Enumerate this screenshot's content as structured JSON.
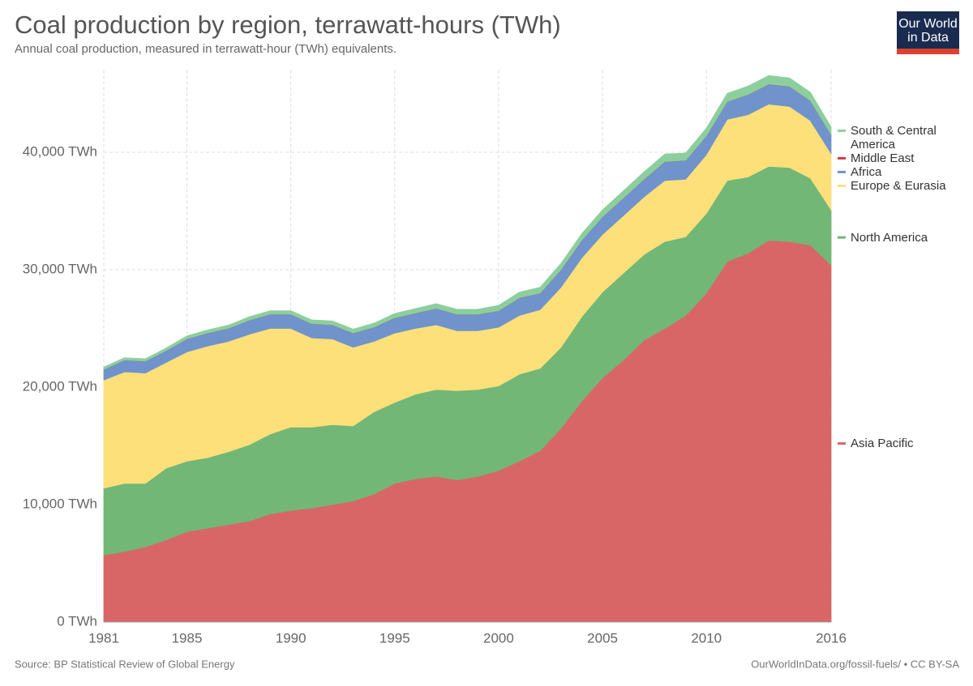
{
  "chart_data": {
    "type": "stacked-area",
    "title": "Coal production by region, terrawatt-hours (TWh)",
    "subtitle": "Annual coal production, measured in terrawatt-hour (TWh) equivalents.",
    "source": "Source: BP Statistical Review of Global Energy",
    "license": "OurWorldInData.org/fossil-fuels/ • CC BY-SA",
    "logo": [
      "Our World",
      "in Data"
    ],
    "x": [
      1981,
      1982,
      1983,
      1984,
      1985,
      1986,
      1987,
      1988,
      1989,
      1990,
      1991,
      1992,
      1993,
      1994,
      1995,
      1996,
      1997,
      1998,
      1999,
      2000,
      2001,
      2002,
      2003,
      2004,
      2005,
      2006,
      2007,
      2008,
      2009,
      2010,
      2011,
      2012,
      2013,
      2014,
      2015,
      2016
    ],
    "xlim": [
      1981,
      2016
    ],
    "xticks": [
      1981,
      1985,
      1990,
      1995,
      2000,
      2005,
      2010,
      2016
    ],
    "ylim": [
      0,
      47000
    ],
    "yticks": [
      {
        "value": 0,
        "label": "0 TWh"
      },
      {
        "value": 10000,
        "label": "10,000 TWh"
      },
      {
        "value": 20000,
        "label": "20,000 TWh"
      },
      {
        "value": 30000,
        "label": "30,000 TWh"
      },
      {
        "value": 40000,
        "label": "40,000 TWh"
      }
    ],
    "grid": true,
    "series": [
      {
        "name": "Asia Pacific",
        "color": "#d96666",
        "values": [
          5700,
          6000,
          6400,
          7000,
          7700,
          8000,
          8300,
          8600,
          9200,
          9500,
          9700,
          10000,
          10300,
          10900,
          11800,
          12200,
          12400,
          12100,
          12400,
          12900,
          13700,
          14600,
          16500,
          18800,
          20800,
          22300,
          24000,
          25000,
          26100,
          28000,
          30700,
          31400,
          32500,
          32400,
          32100,
          30400
        ]
      },
      {
        "name": "North America",
        "color": "#73b776",
        "values": [
          5700,
          5800,
          5400,
          6100,
          6000,
          6000,
          6200,
          6500,
          6800,
          7100,
          6900,
          6800,
          6400,
          7000,
          6900,
          7200,
          7400,
          7600,
          7400,
          7200,
          7400,
          7000,
          6900,
          7200,
          7300,
          7400,
          7300,
          7400,
          6700,
          6800,
          6900,
          6500,
          6300,
          6300,
          5700,
          4700
        ]
      },
      {
        "name": "Europe & Eurasia",
        "color": "#fde07a",
        "values": [
          9200,
          9500,
          9400,
          9000,
          9300,
          9500,
          9400,
          9400,
          9000,
          8400,
          7600,
          7300,
          6700,
          6000,
          5900,
          5600,
          5500,
          5100,
          5000,
          5000,
          5000,
          5000,
          5100,
          5000,
          4900,
          4900,
          4900,
          5200,
          4900,
          5000,
          5200,
          5300,
          5300,
          5200,
          4900,
          4800
        ]
      },
      {
        "name": "Africa",
        "color": "#7093cb",
        "values": [
          900,
          1000,
          1000,
          1000,
          1100,
          1100,
          1100,
          1200,
          1200,
          1200,
          1200,
          1200,
          1200,
          1200,
          1300,
          1300,
          1400,
          1400,
          1400,
          1400,
          1500,
          1400,
          1500,
          1500,
          1500,
          1500,
          1500,
          1600,
          1600,
          1600,
          1500,
          1700,
          1700,
          1700,
          1700,
          1600
        ]
      },
      {
        "name": "Middle East",
        "color": "#d33a3a",
        "values": [
          10,
          10,
          10,
          10,
          10,
          10,
          10,
          10,
          10,
          10,
          10,
          10,
          10,
          10,
          10,
          10,
          10,
          10,
          10,
          10,
          10,
          10,
          10,
          10,
          10,
          10,
          10,
          10,
          10,
          10,
          10,
          10,
          10,
          10,
          10,
          10
        ]
      },
      {
        "name": "South & Central America",
        "color": "#8ccf9c",
        "values": [
          200,
          200,
          200,
          220,
          250,
          260,
          270,
          280,
          300,
          300,
          320,
          330,
          330,
          340,
          360,
          380,
          400,
          420,
          430,
          450,
          480,
          500,
          520,
          560,
          580,
          600,
          620,
          640,
          620,
          650,
          700,
          720,
          720,
          720,
          700,
          650
        ]
      }
    ]
  }
}
